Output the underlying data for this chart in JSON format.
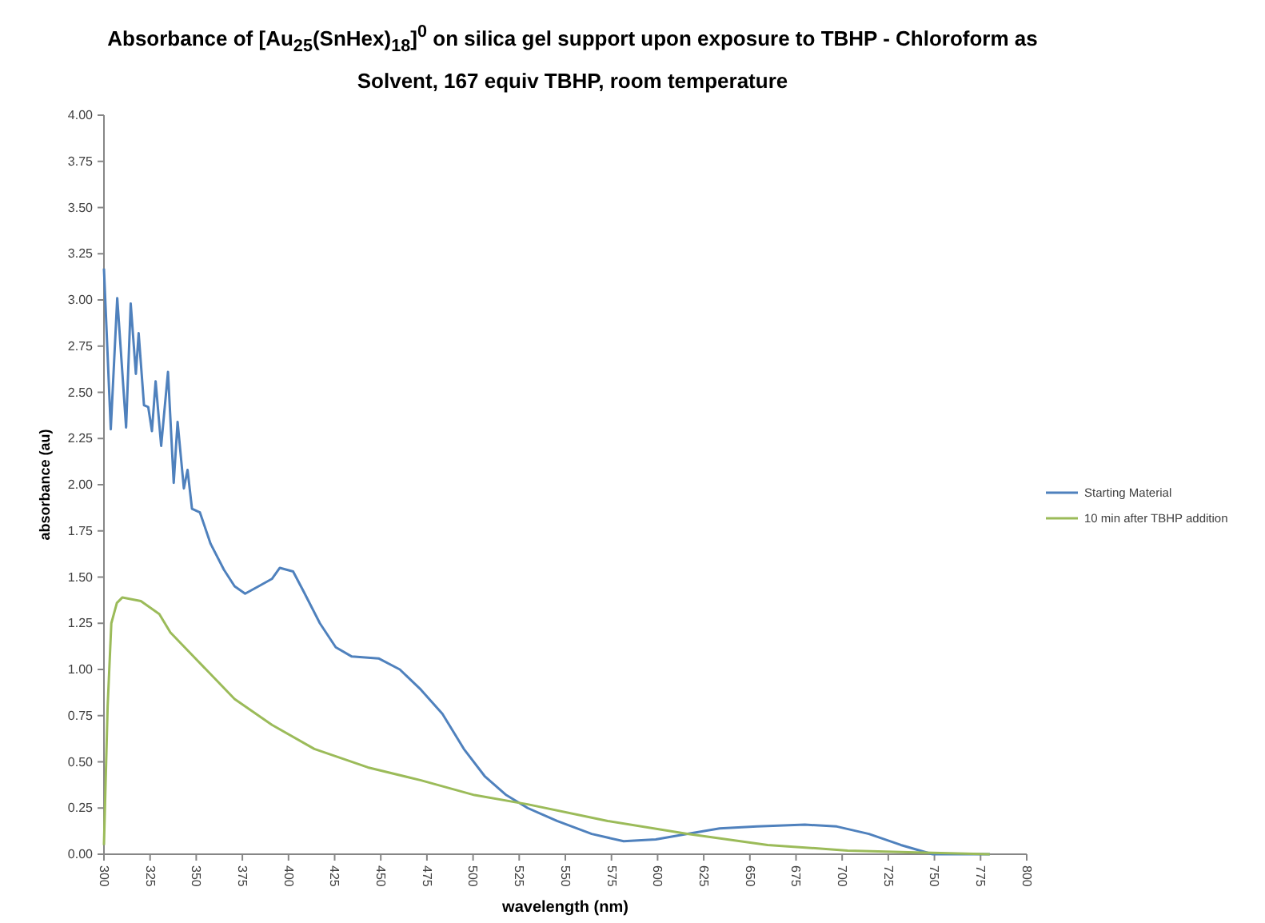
{
  "chart_data": {
    "type": "line",
    "title": "Absorbance of [Au$_{25}$(SnHex)$_{18}$]$^{0}$ on silica gel support upon exposure to TBHP - Chloroform as Solvent, 167 equiv TBHP, room temperature",
    "xlabel": "wavelength (nm)",
    "ylabel": "absorbance (au)",
    "xlim": [
      300,
      800
    ],
    "xticks": [
      300,
      325,
      350,
      375,
      400,
      425,
      450,
      475,
      500,
      525,
      550,
      575,
      600,
      625,
      650,
      675,
      700,
      725,
      750,
      775,
      800
    ],
    "ylim": [
      0,
      4
    ],
    "yticks": [
      {
        "value": 0,
        "label": "0.00"
      },
      {
        "value": 0.25,
        "label": "0.25"
      },
      {
        "value": 0.5,
        "label": "0.50"
      },
      {
        "value": 0.75,
        "label": "0.75"
      },
      {
        "value": 1,
        "label": "1.00"
      },
      {
        "value": 1.25,
        "label": "1.25"
      },
      {
        "value": 1.5,
        "label": "1.50"
      },
      {
        "value": 1.75,
        "label": "1.75"
      },
      {
        "value": 2,
        "label": "2.00"
      },
      {
        "value": 2.25,
        "label": "2.25"
      },
      {
        "value": 2.5,
        "label": "2.50"
      },
      {
        "value": 2.75,
        "label": "2.75"
      },
      {
        "value": 3,
        "label": "3.00"
      },
      {
        "value": 3.25,
        "label": "3.25"
      },
      {
        "value": 3.5,
        "label": "3.50"
      },
      {
        "value": 3.75,
        "label": "3.75"
      },
      {
        "value": 4,
        "label": "4.00"
      }
    ],
    "grid": false,
    "legend": "right",
    "marker": "none",
    "line_style": "solid",
    "series": [
      {
        "name": "Starting Material",
        "color": "#4f81bd",
        "x": [
          300,
          303.7,
          307.2,
          312,
          314.5,
          317.3,
          318.8,
          321.7,
          324,
          326,
          328,
          331,
          334.7,
          337.8,
          339.9,
          343.3,
          345.3,
          347.7,
          352,
          357.8,
          365,
          370.8,
          376.5,
          383.8,
          391,
          395.3,
          402.5,
          408.3,
          417,
          425.6,
          434.3,
          448.8,
          460.3,
          471.8,
          483.4,
          495,
          506.5,
          518,
          529.6,
          545.5,
          564.3,
          581.6,
          599,
          616.3,
          633.6,
          653.8,
          679.8,
          697.1,
          714.5,
          731.8,
          749,
          765,
          780
        ],
        "values": [
          3.17,
          2.3,
          3.01,
          2.31,
          2.98,
          2.6,
          2.82,
          2.43,
          2.42,
          2.29,
          2.56,
          2.21,
          2.61,
          2.01,
          2.34,
          1.98,
          2.08,
          1.87,
          1.85,
          1.68,
          1.54,
          1.45,
          1.41,
          1.45,
          1.49,
          1.55,
          1.53,
          1.42,
          1.25,
          1.12,
          1.07,
          1.06,
          1,
          0.89,
          0.76,
          0.57,
          0.42,
          0.32,
          0.25,
          0.18,
          0.11,
          0.07,
          0.08,
          0.11,
          0.14,
          0.15,
          0.16,
          0.15,
          0.11,
          0.05,
          0,
          0,
          0
        ]
      },
      {
        "name": "10 min after TBHP addition",
        "color": "#9bbb59",
        "x": [
          300,
          302,
          304,
          307,
          310,
          320,
          330,
          336,
          350.5,
          370.8,
          391,
          414,
          443,
          471.8,
          500.8,
          529.6,
          573,
          616,
          659.6,
          703,
          740,
          780
        ],
        "values": [
          0.05,
          0.8,
          1.25,
          1.36,
          1.39,
          1.37,
          1.3,
          1.2,
          1.05,
          0.84,
          0.7,
          0.57,
          0.47,
          0.4,
          0.32,
          0.27,
          0.18,
          0.11,
          0.05,
          0.02,
          0.01,
          0
        ]
      }
    ]
  }
}
